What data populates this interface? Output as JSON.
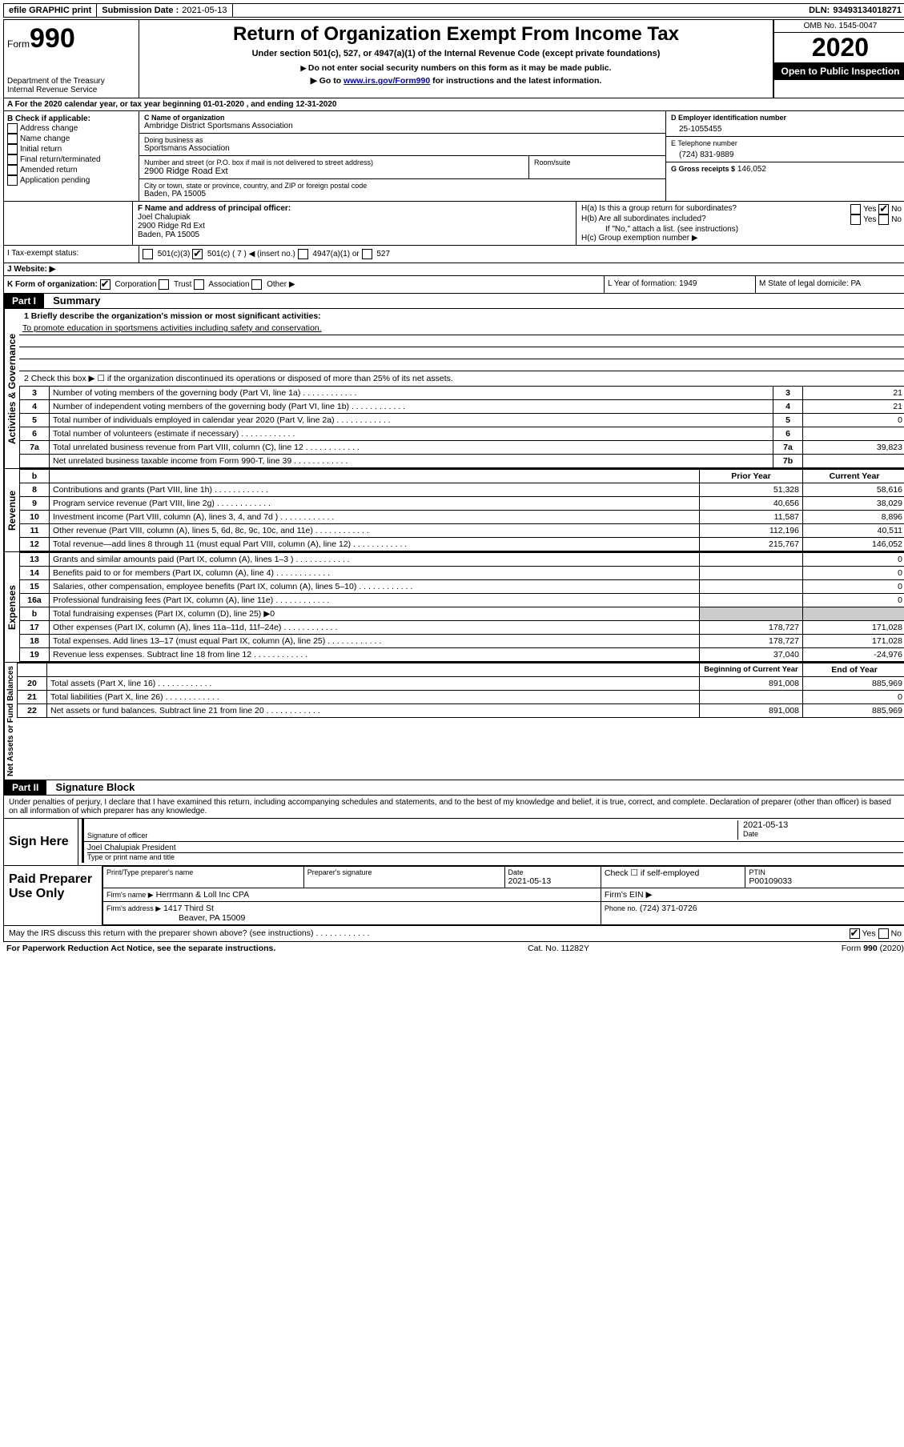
{
  "topbar": {
    "efile": "efile GRAPHIC print",
    "submission_label": "Submission Date :",
    "submission_date": "2021-05-13",
    "dln_label": "DLN:",
    "dln": "93493134018271"
  },
  "header": {
    "form_word": "Form",
    "form_num": "990",
    "dept1": "Department of the Treasury",
    "dept2": "Internal Revenue Service",
    "title": "Return of Organization Exempt From Income Tax",
    "subtitle": "Under section 501(c), 527, or 4947(a)(1) of the Internal Revenue Code (except private foundations)",
    "note1": "Do not enter social security numbers on this form as it may be made public.",
    "note2_pre": "Go to ",
    "note2_link": "www.irs.gov/Form990",
    "note2_post": " for instructions and the latest information.",
    "omb": "OMB No. 1545-0047",
    "year": "2020",
    "open": "Open to Public Inspection"
  },
  "rowA": "A For the 2020 calendar year, or tax year beginning 01-01-2020   , and ending 12-31-2020",
  "colB": {
    "title": "B Check if applicable:",
    "items": [
      "Address change",
      "Name change",
      "Initial return",
      "Final return/terminated",
      "Amended return",
      "Application pending"
    ]
  },
  "colC": {
    "name_label": "C Name of organization",
    "name": "Ambridge District Sportsmans Association",
    "dba_label": "Doing business as",
    "dba": "Sportsmans Association",
    "addr_label": "Number and street (or P.O. box if mail is not delivered to street address)",
    "room_label": "Room/suite",
    "addr": "2900 Ridge Road Ext",
    "city_label": "City or town, state or province, country, and ZIP or foreign postal code",
    "city": "Baden, PA  15005"
  },
  "colD": {
    "label": "D Employer identification number",
    "value": "25-1055455"
  },
  "colE": {
    "label": "E Telephone number",
    "value": "(724) 831-9889"
  },
  "colG": {
    "label": "G Gross receipts $",
    "value": "146,052"
  },
  "colF": {
    "label": "F  Name and address of principal officer:",
    "name": "Joel Chalupiak",
    "addr1": "2900 Ridge Rd Ext",
    "addr2": "Baden, PA  15005"
  },
  "colH": {
    "a": "H(a)  Is this a group return for subordinates?",
    "b": "H(b)  Are all subordinates included?",
    "b_note": "If \"No,\" attach a list. (see instructions)",
    "c": "H(c)  Group exemption number ▶",
    "yes": "Yes",
    "no": "No"
  },
  "rowI": {
    "label": "I   Tax-exempt status:",
    "opts": [
      "501(c)(3)",
      "501(c) ( 7 ) ◀ (insert no.)",
      "4947(a)(1) or",
      "527"
    ]
  },
  "rowJ": "J   Website: ▶",
  "rowK": {
    "label": "K Form of organization:",
    "opts": [
      "Corporation",
      "Trust",
      "Association",
      "Other ▶"
    ],
    "l": "L Year of formation: 1949",
    "m": "M State of legal domicile: PA"
  },
  "part1": {
    "header": "Part I",
    "title": "Summary",
    "side_gov": "Activities & Governance",
    "side_rev": "Revenue",
    "side_exp": "Expenses",
    "side_net": "Net Assets or Fund Balances",
    "l1_label": "1  Briefly describe the organization's mission or most significant activities:",
    "l1_text": "To promote education in sportsmens activities including safety and conservation.",
    "l2": "2    Check this box ▶ ☐  if the organization discontinued its operations or disposed of more than 25% of its net assets.",
    "rows_gov": [
      {
        "n": "3",
        "t": "Number of voting members of the governing body (Part VI, line 1a)",
        "box": "3",
        "v": "21"
      },
      {
        "n": "4",
        "t": "Number of independent voting members of the governing body (Part VI, line 1b)",
        "box": "4",
        "v": "21"
      },
      {
        "n": "5",
        "t": "Total number of individuals employed in calendar year 2020 (Part V, line 2a)",
        "box": "5",
        "v": "0"
      },
      {
        "n": "6",
        "t": "Total number of volunteers (estimate if necessary)",
        "box": "6",
        "v": ""
      },
      {
        "n": "7a",
        "t": "Total unrelated business revenue from Part VIII, column (C), line 12",
        "box": "7a",
        "v": "39,823"
      },
      {
        "n": "",
        "t": "Net unrelated business taxable income from Form 990-T, line 39",
        "box": "7b",
        "v": ""
      }
    ],
    "col_b": "b",
    "col_prior": "Prior Year",
    "col_current": "Current Year",
    "rows_rev": [
      {
        "n": "8",
        "t": "Contributions and grants (Part VIII, line 1h)",
        "p": "51,328",
        "c": "58,616"
      },
      {
        "n": "9",
        "t": "Program service revenue (Part VIII, line 2g)",
        "p": "40,656",
        "c": "38,029"
      },
      {
        "n": "10",
        "t": "Investment income (Part VIII, column (A), lines 3, 4, and 7d )",
        "p": "11,587",
        "c": "8,896"
      },
      {
        "n": "11",
        "t": "Other revenue (Part VIII, column (A), lines 5, 6d, 8c, 9c, 10c, and 11e)",
        "p": "112,196",
        "c": "40,511"
      },
      {
        "n": "12",
        "t": "Total revenue—add lines 8 through 11 (must equal Part VIII, column (A), line 12)",
        "p": "215,767",
        "c": "146,052"
      }
    ],
    "rows_exp": [
      {
        "n": "13",
        "t": "Grants and similar amounts paid (Part IX, column (A), lines 1–3 )",
        "p": "",
        "c": "0"
      },
      {
        "n": "14",
        "t": "Benefits paid to or for members (Part IX, column (A), line 4)",
        "p": "",
        "c": "0"
      },
      {
        "n": "15",
        "t": "Salaries, other compensation, employee benefits (Part IX, column (A), lines 5–10)",
        "p": "",
        "c": "0"
      },
      {
        "n": "16a",
        "t": "Professional fundraising fees (Part IX, column (A), line 11e)",
        "p": "",
        "c": "0"
      },
      {
        "n": "b",
        "t": "Total fundraising expenses (Part IX, column (D), line 25) ▶0",
        "p": "SHADED",
        "c": "SHADED"
      },
      {
        "n": "17",
        "t": "Other expenses (Part IX, column (A), lines 11a–11d, 11f–24e)",
        "p": "178,727",
        "c": "171,028"
      },
      {
        "n": "18",
        "t": "Total expenses. Add lines 13–17 (must equal Part IX, column (A), line 25)",
        "p": "178,727",
        "c": "171,028"
      },
      {
        "n": "19",
        "t": "Revenue less expenses. Subtract line 18 from line 12",
        "p": "37,040",
        "c": "-24,976"
      }
    ],
    "col_begin": "Beginning of Current Year",
    "col_end": "End of Year",
    "rows_net": [
      {
        "n": "20",
        "t": "Total assets (Part X, line 16)",
        "p": "891,008",
        "c": "885,969"
      },
      {
        "n": "21",
        "t": "Total liabilities (Part X, line 26)",
        "p": "",
        "c": "0"
      },
      {
        "n": "22",
        "t": "Net assets or fund balances. Subtract line 21 from line 20",
        "p": "891,008",
        "c": "885,969"
      }
    ]
  },
  "part2": {
    "header": "Part II",
    "title": "Signature Block",
    "declaration": "Under penalties of perjury, I declare that I have examined this return, including accompanying schedules and statements, and to the best of my knowledge and belief, it is true, correct, and complete. Declaration of preparer (other than officer) is based on all information of which preparer has any knowledge.",
    "sign_here": "Sign Here",
    "sig_officer": "Signature of officer",
    "sig_date": "2021-05-13",
    "date_label": "Date",
    "officer_name": "Joel Chalupiak  President",
    "type_label": "Type or print name and title",
    "paid_label": "Paid Preparer Use Only",
    "prep_name_label": "Print/Type preparer's name",
    "prep_sig_label": "Preparer's signature",
    "prep_date_label": "Date",
    "prep_date": "2021-05-13",
    "check_self": "Check ☐ if self-employed",
    "ptin_label": "PTIN",
    "ptin": "P00109033",
    "firm_name_label": "Firm's name    ▶",
    "firm_name": "Herrmann & Loll Inc CPA",
    "firm_ein_label": "Firm's EIN ▶",
    "firm_addr_label": "Firm's address ▶",
    "firm_addr1": "1417 Third St",
    "firm_addr2": "Beaver, PA  15009",
    "phone_label": "Phone no.",
    "phone": "(724) 371-0726",
    "discuss": "May the IRS discuss this return with the preparer shown above? (see instructions)",
    "yes": "Yes",
    "no": "No"
  },
  "footer": {
    "paperwork": "For Paperwork Reduction Act Notice, see the separate instructions.",
    "cat": "Cat. No. 11282Y",
    "form": "Form 990 (2020)"
  }
}
